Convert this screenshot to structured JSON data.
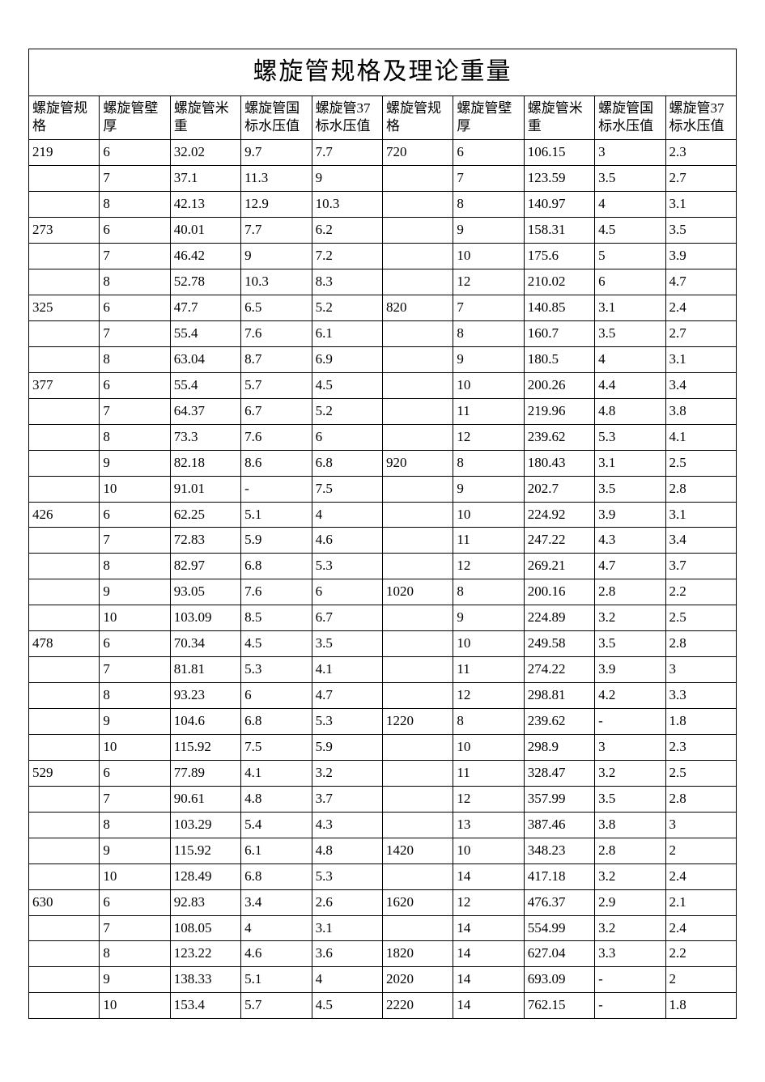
{
  "title": "螺旋管规格及理论重量",
  "columns": [
    "螺旋管规格",
    "螺旋管壁厚",
    "螺旋管米重",
    "螺旋管国标水压值",
    "螺旋管37标水压值",
    "螺旋管规格",
    "螺旋管壁厚",
    "螺旋管米重",
    "螺旋管国标水压值",
    "螺旋管37标水压值"
  ],
  "rows": [
    [
      "219",
      "6",
      "32.02",
      "9.7",
      "7.7",
      "720",
      "6",
      "106.15",
      "3",
      "2.3"
    ],
    [
      "",
      "7",
      "37.1",
      "11.3",
      "9",
      "",
      "7",
      "123.59",
      "3.5",
      "2.7"
    ],
    [
      "",
      "8",
      "42.13",
      "12.9",
      "10.3",
      "",
      "8",
      "140.97",
      "4",
      "3.1"
    ],
    [
      "273",
      "6",
      "40.01",
      "7.7",
      "6.2",
      "",
      "9",
      "158.31",
      "4.5",
      "3.5"
    ],
    [
      "",
      "7",
      "46.42",
      "9",
      "7.2",
      "",
      "10",
      "175.6",
      "5",
      "3.9"
    ],
    [
      "",
      "8",
      "52.78",
      "10.3",
      "8.3",
      "",
      "12",
      "210.02",
      "6",
      "4.7"
    ],
    [
      "325",
      "6",
      "47.7",
      "6.5",
      "5.2",
      "820",
      "7",
      "140.85",
      "3.1",
      "2.4"
    ],
    [
      "",
      "7",
      "55.4",
      "7.6",
      "6.1",
      "",
      "8",
      "160.7",
      "3.5",
      "2.7"
    ],
    [
      "",
      "8",
      "63.04",
      "8.7",
      "6.9",
      "",
      "9",
      "180.5",
      "4",
      "3.1"
    ],
    [
      "377",
      "6",
      "55.4",
      "5.7",
      "4.5",
      "",
      "10",
      "200.26",
      "4.4",
      "3.4"
    ],
    [
      "",
      "7",
      "64.37",
      "6.7",
      "5.2",
      "",
      "11",
      "219.96",
      "4.8",
      "3.8"
    ],
    [
      "",
      "8",
      "73.3",
      "7.6",
      "6",
      "",
      "12",
      "239.62",
      "5.3",
      "4.1"
    ],
    [
      "",
      "9",
      "82.18",
      "8.6",
      "6.8",
      "920",
      "8",
      "180.43",
      "3.1",
      "2.5"
    ],
    [
      "",
      "10",
      "91.01",
      "-",
      "7.5",
      "",
      "9",
      "202.7",
      "3.5",
      "2.8"
    ],
    [
      "426",
      "6",
      "62.25",
      "5.1",
      "4",
      "",
      "10",
      "224.92",
      "3.9",
      "3.1"
    ],
    [
      "",
      "7",
      "72.83",
      "5.9",
      "4.6",
      "",
      "11",
      "247.22",
      "4.3",
      "3.4"
    ],
    [
      "",
      "8",
      "82.97",
      "6.8",
      "5.3",
      "",
      "12",
      "269.21",
      "4.7",
      "3.7"
    ],
    [
      "",
      "9",
      "93.05",
      "7.6",
      "6",
      "1020",
      "8",
      "200.16",
      "2.8",
      "2.2"
    ],
    [
      "",
      "10",
      "103.09",
      "8.5",
      "6.7",
      "",
      "9",
      "224.89",
      "3.2",
      "2.5"
    ],
    [
      "478",
      "6",
      "70.34",
      "4.5",
      "3.5",
      "",
      "10",
      "249.58",
      "3.5",
      "2.8"
    ],
    [
      "",
      "7",
      "81.81",
      "5.3",
      "4.1",
      "",
      "11",
      "274.22",
      "3.9",
      "3"
    ],
    [
      "",
      "8",
      "93.23",
      "6",
      "4.7",
      "",
      "12",
      "298.81",
      "4.2",
      "3.3"
    ],
    [
      "",
      "9",
      "104.6",
      "6.8",
      "5.3",
      "1220",
      "8",
      "239.62",
      "-",
      "1.8"
    ],
    [
      "",
      "10",
      "115.92",
      "7.5",
      "5.9",
      "",
      "10",
      "298.9",
      "3",
      "2.3"
    ],
    [
      "529",
      "6",
      "77.89",
      "4.1",
      "3.2",
      "",
      "11",
      "328.47",
      "3.2",
      "2.5"
    ],
    [
      "",
      "7",
      "90.61",
      "4.8",
      "3.7",
      "",
      "12",
      "357.99",
      "3.5",
      "2.8"
    ],
    [
      "",
      "8",
      "103.29",
      "5.4",
      "4.3",
      "",
      "13",
      "387.46",
      "3.8",
      "3"
    ],
    [
      "",
      "9",
      "115.92",
      "6.1",
      "4.8",
      "1420",
      "10",
      "348.23",
      "2.8",
      "2"
    ],
    [
      "",
      "10",
      "128.49",
      "6.8",
      "5.3",
      "",
      "14",
      "417.18",
      "3.2",
      "2.4"
    ],
    [
      "630",
      "6",
      "92.83",
      "3.4",
      "2.6",
      "1620",
      "12",
      "476.37",
      "2.9",
      "2.1"
    ],
    [
      "",
      "7",
      "108.05",
      "4",
      "3.1",
      "",
      "14",
      "554.99",
      "3.2",
      "2.4"
    ],
    [
      "",
      "8",
      "123.22",
      "4.6",
      "3.6",
      "1820",
      "14",
      "627.04",
      "3.3",
      "2.2"
    ],
    [
      "",
      "9",
      "138.33",
      "5.1",
      "4",
      "2020",
      "14",
      "693.09",
      "-",
      "2"
    ],
    [
      "",
      "10",
      "153.4",
      "5.7",
      "4.5",
      "2220",
      "14",
      "762.15",
      "-",
      "1.8"
    ]
  ],
  "styles": {
    "background_color": "#ffffff",
    "border_color": "#000000",
    "title_fontsize": 30,
    "cell_fontsize": 17,
    "font_family": "SimSun"
  }
}
